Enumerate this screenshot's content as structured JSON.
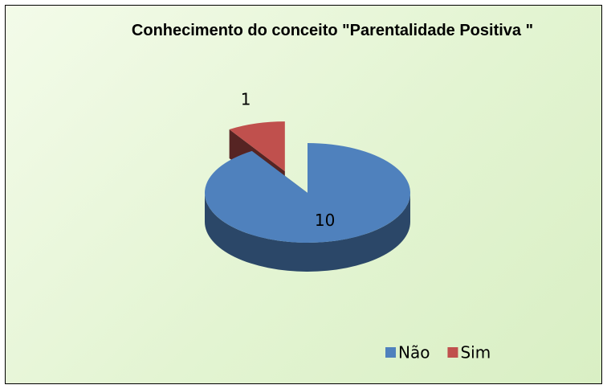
{
  "chart_data": {
    "type": "pie",
    "title": "Conhecimento do conceito \"Parentalidade Positiva \"",
    "categories": [
      "Não",
      "Sim"
    ],
    "values": [
      10,
      1
    ],
    "colors": [
      "#4f81bd",
      "#c0504d"
    ],
    "legend": "bottom-right",
    "exploded": [
      false,
      true
    ],
    "three_d": true
  }
}
